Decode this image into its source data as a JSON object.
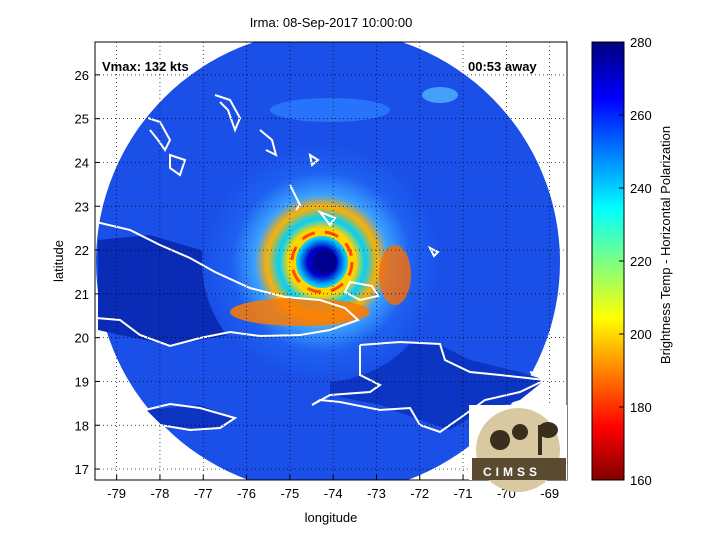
{
  "title": "Irma: 08-Sep-2017 10:00:00",
  "annotations": {
    "vmax": "Vmax: 132 kts",
    "time_away": "00:53 away"
  },
  "axes": {
    "xlabel": "longitude",
    "ylabel": "latitude",
    "xticks": [
      "-79",
      "-78",
      "-77",
      "-76",
      "-75",
      "-74",
      "-73",
      "-72",
      "-71",
      "-70",
      "-69"
    ],
    "yticks": [
      "17",
      "18",
      "19",
      "20",
      "21",
      "22",
      "23",
      "24",
      "25",
      "26"
    ],
    "xlim": [
      -79.5,
      -68.6
    ],
    "ylim": [
      16.75,
      26.75
    ],
    "grid": true
  },
  "colorbar": {
    "label": "Brightness Temp - Horizontal Polarization",
    "ticks": [
      "280",
      "260",
      "240",
      "220",
      "200",
      "180",
      "160"
    ],
    "range": [
      160,
      280
    ],
    "colormap": "jet"
  },
  "logo": {
    "text": "CIMSS"
  },
  "storm": {
    "eye_lon": -74.1,
    "eye_lat": 21.8
  },
  "colors": {
    "background_scan": "#1a4fe8",
    "ring_inner": "#ffd400",
    "ring_outer": "#ff7a00",
    "eye": "#00008f",
    "coast": "#ffffff"
  }
}
